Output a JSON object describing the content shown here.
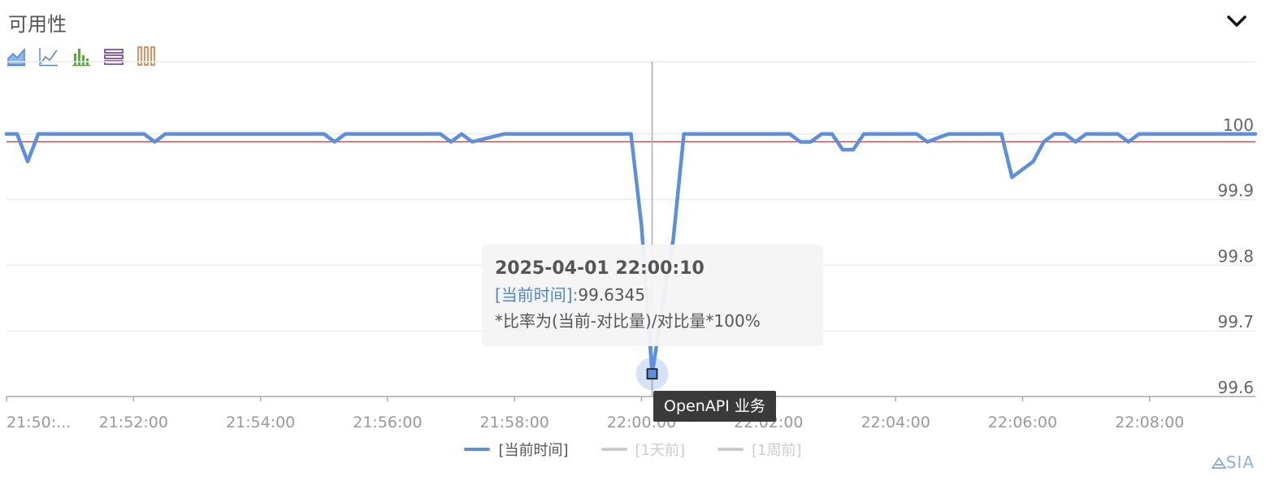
{
  "title": "可用性",
  "colors": {
    "series": "#5b8fdf",
    "threshold": "#d64541",
    "grid": "#ececec",
    "axis": "#999999",
    "inactive": "#cccccc",
    "tool_area": "#4d86d9",
    "tool_line": "#4d86d9",
    "tool_bar": "#5aaa3a",
    "tool_stack": "#6a3aa0",
    "tool_tiled": "#d9783a"
  },
  "toolbar": [
    {
      "name": "area-chart-icon",
      "title": "面积图"
    },
    {
      "name": "line-chart-icon",
      "title": "折线图"
    },
    {
      "name": "bar-chart-icon",
      "title": "柱状图"
    },
    {
      "name": "stack-icon",
      "title": "堆叠"
    },
    {
      "name": "tiled-icon",
      "title": "平铺"
    }
  ],
  "tooltip": {
    "time": "2025-04-01 22:00:10",
    "series_label": "[当前时间]:",
    "series_value": "99.6345",
    "note": "*比率为(当前-对比量)/对比量*100%"
  },
  "hover_label": "OpenAPI 业务",
  "legend": [
    {
      "label": "[当前时间]",
      "active": true
    },
    {
      "label": "[1天前]",
      "active": false
    },
    {
      "label": "[1周前]",
      "active": false
    }
  ],
  "brand": "SIA",
  "chart_data": {
    "type": "line",
    "x_tick_labels": [
      "21:50:...",
      "21:52:00",
      "21:54:00",
      "21:56:00",
      "21:58:00",
      "22:00:00",
      "22:02:00",
      "22:04:00",
      "22:06:00",
      "22:08:00"
    ],
    "x_tick_values": [
      0,
      120,
      240,
      360,
      480,
      600,
      720,
      840,
      960,
      1080
    ],
    "xlim": [
      0,
      1180
    ],
    "ylim": [
      99.6,
      100.11
    ],
    "y_ticks": [
      100,
      99.9,
      99.8,
      99.7,
      99.6
    ],
    "y_tick_labels": [
      "100",
      "99.9",
      "99.8",
      "99.7",
      "99.6"
    ],
    "threshold": 99.988,
    "hover_x": 610,
    "series": [
      {
        "label": "[当前时间]",
        "x": [
          0,
          10,
          20,
          30,
          60,
          90,
          120,
          130,
          140,
          150,
          180,
          210,
          240,
          270,
          300,
          310,
          320,
          350,
          380,
          410,
          420,
          430,
          440,
          470,
          500,
          530,
          560,
          590,
          600,
          610,
          620,
          630,
          640,
          650,
          680,
          710,
          740,
          750,
          760,
          770,
          780,
          790,
          800,
          810,
          840,
          860,
          870,
          890,
          920,
          930,
          940,
          950,
          960,
          970,
          980,
          990,
          1000,
          1010,
          1020,
          1040,
          1050,
          1060,
          1070,
          1080,
          1100,
          1130,
          1160,
          1180
        ],
        "y": [
          100.0,
          100.0,
          99.958,
          100.0,
          100.0,
          100.0,
          100.0,
          100.0,
          99.988,
          100.0,
          100.0,
          100.0,
          100.0,
          100.0,
          100.0,
          99.988,
          100.0,
          100.0,
          100.0,
          100.0,
          99.988,
          100.0,
          99.988,
          100.0,
          100.0,
          100.0,
          100.0,
          100.0,
          99.86,
          99.6345,
          99.74,
          99.84,
          100.0,
          100.0,
          100.0,
          100.0,
          100.0,
          99.988,
          99.988,
          100.0,
          100.0,
          99.976,
          99.976,
          100.0,
          100.0,
          100.0,
          99.988,
          100.0,
          100.0,
          100.0,
          100.0,
          99.934,
          99.946,
          99.958,
          99.988,
          100.0,
          100.0,
          99.988,
          100.0,
          100.0,
          100.0,
          99.988,
          100.0,
          100.0,
          100.0,
          100.0,
          100.0,
          100.0
        ]
      }
    ]
  }
}
